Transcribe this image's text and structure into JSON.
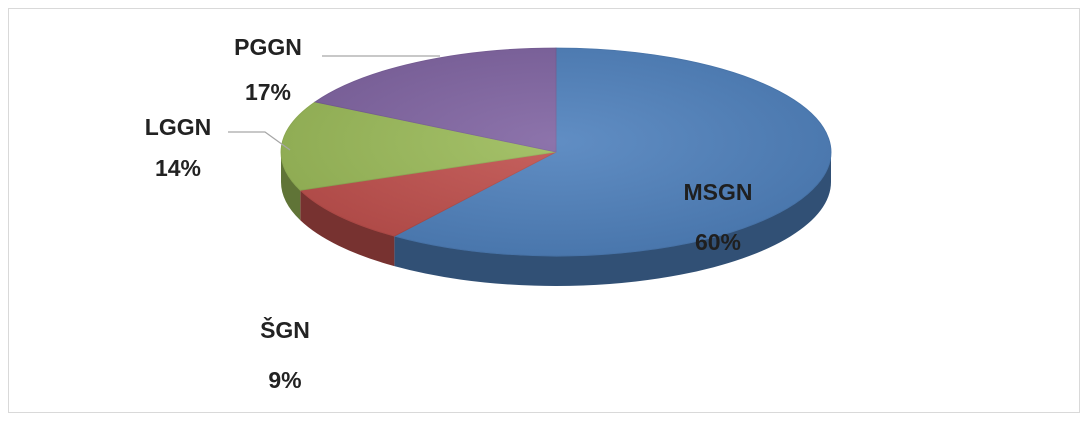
{
  "chart_data": {
    "type": "pie",
    "style": "3d",
    "title": "",
    "legend": "none",
    "slices": [
      {
        "label": "MSGN",
        "value": 60,
        "percent_label": "60%",
        "color": "#4f81bd"
      },
      {
        "label": "ŠGN",
        "value": 9,
        "percent_label": "9%",
        "color": "#c0504d"
      },
      {
        "label": "LGGN",
        "value": 14,
        "percent_label": "14%",
        "color": "#9bbb59"
      },
      {
        "label": "PGGN",
        "value": 17,
        "percent_label": "17%",
        "color": "#8064a2"
      }
    ]
  }
}
